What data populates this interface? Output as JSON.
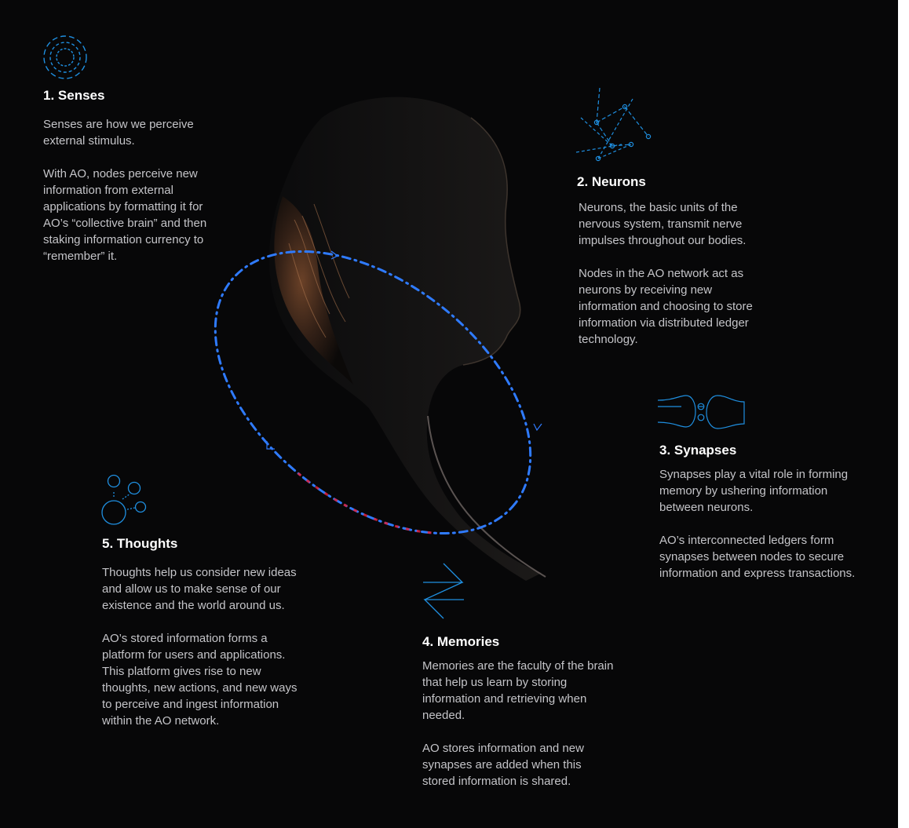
{
  "colors": {
    "background": "#070708",
    "accent_blue": "#2f7bff",
    "accent_red": "#e0203a",
    "icon_blue": "#1f8fe0",
    "heading": "#ffffff",
    "body_text": "#c4c4c8"
  },
  "icons": {
    "senses": "concentric-dashed-circles-icon",
    "neurons": "neuron-network-icon",
    "synapses": "synapse-icon",
    "memories": "exchange-arrows-icon",
    "thoughts": "thought-bubbles-icon"
  },
  "senses": {
    "title": "1. Senses",
    "p1": "Senses are how we perceive external stimulus.",
    "p2": "With AO, nodes perceive new information from external applications by formatting it for AO’s “collective brain” and then staking information currency to “remember” it."
  },
  "neurons": {
    "title": "2. Neurons",
    "p1": "Neurons, the basic units of the nervous system, transmit nerve impulses throughout our bodies.",
    "p2": "Nodes in the AO network act as neurons by receiving new information and choosing to store information via distributed ledger technology."
  },
  "synapses": {
    "title": "3. Synapses",
    "p1": "Synapses play a vital role in forming memory by ushering information between neurons.",
    "p2": "AO’s interconnected ledgers form synapses between nodes to secure information and express transactions."
  },
  "memories": {
    "title": "4. Memories",
    "p1": "Memories are the faculty of the brain that help us learn by storing information and retrieving when needed.",
    "p2": "AO stores information and new synapses are added when this stored information is shared."
  },
  "thoughts": {
    "title": "5. Thoughts",
    "p1": "Thoughts help us consider new ideas and allow us to make sense of our existence and the world around us.",
    "p2": "AO’s stored information forms a platform for users and applications. This platform gives rise to new thoughts, new actions, and new ways to perceive and ingest information within the AO network."
  }
}
